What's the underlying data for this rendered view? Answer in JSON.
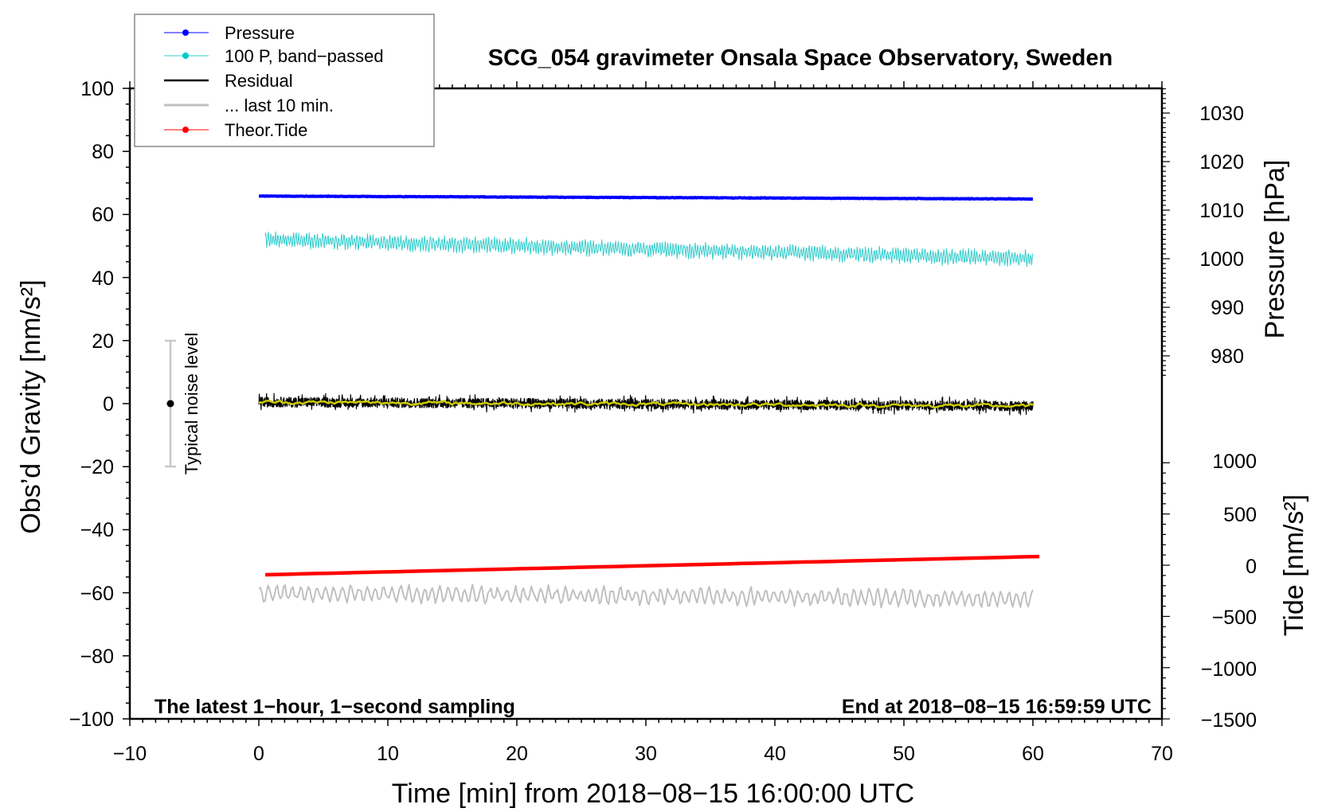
{
  "chart_data": {
    "type": "line",
    "title": "SCG_054 gravimeter Onsala Space Observatory, Sweden",
    "xlabel": "Time [min] from 2018−08−15 16:00:00 UTC",
    "ylabel": "Obs’d Gravity [nm/s²]",
    "y2label_pressure": "Pressure [hPa]",
    "y2label_tide": "Tide [nm/s²]",
    "xlim": [
      -10,
      70
    ],
    "ylim": [
      -100,
      100
    ],
    "pressure_axis_range": [
      980,
      1030
    ],
    "tide_axis_range": [
      -1500,
      1000
    ],
    "x_ticks": [
      "−10",
      "0",
      "10",
      "20",
      "30",
      "40",
      "50",
      "60",
      "70"
    ],
    "y_ticks": [
      "100",
      "80",
      "60",
      "40",
      "20",
      "0",
      "−20",
      "−40",
      "−60",
      "−80",
      "−100"
    ],
    "pressure_ticks": [
      "1030",
      "1020",
      "1010",
      "1000",
      "990",
      "980"
    ],
    "tide_ticks": [
      "1000",
      "500",
      "0",
      "−500",
      "−1000",
      "−1500"
    ],
    "annotation_left": "The latest 1−hour, 1−second sampling",
    "annotation_right": "End at 2018−08−15 16:59:59 UTC",
    "noise_label": "Typical noise level",
    "noise_level": {
      "x": -7,
      "center": 0,
      "low": -20,
      "high": 20
    },
    "legend_position": "top-left",
    "legend": [
      "Pressure",
      "100 P, band−passed",
      "Residual",
      "... last 10 min.",
      "Theor.Tide"
    ],
    "series": [
      {
        "name": "Pressure",
        "axis": "pressure",
        "x_range": [
          0,
          60
        ],
        "start": 1012.9,
        "end": 1012.3,
        "noise": 0.05,
        "color": "#0000ff"
      },
      {
        "name": "100 P, band−passed",
        "axis": "gravity",
        "x_range": [
          0.5,
          60
        ],
        "start": 52,
        "end": 46,
        "noise": 2.2,
        "color": "#33cccc"
      },
      {
        "name": "Residual",
        "axis": "gravity",
        "x_range": [
          0,
          60
        ],
        "start": 0.5,
        "end": -0.8,
        "noise": 1.6,
        "color": "#000000"
      },
      {
        "name": "Residual smoothed",
        "axis": "gravity",
        "x_range": [
          0,
          60
        ],
        "start": 0.5,
        "end": -0.8,
        "noise": 0.4,
        "color": "#cccc00"
      },
      {
        "name": "... last 10 min.",
        "axis": "gravity",
        "x_range": [
          0,
          60
        ],
        "start": -60,
        "end": -62,
        "noise": 2.5,
        "color": "#c0c0c0"
      },
      {
        "name": "Theor.Tide",
        "axis": "tide",
        "x_range": [
          0.5,
          60.5
        ],
        "start": -93,
        "end": 85,
        "noise": 0,
        "color": "#ff0000"
      }
    ]
  }
}
